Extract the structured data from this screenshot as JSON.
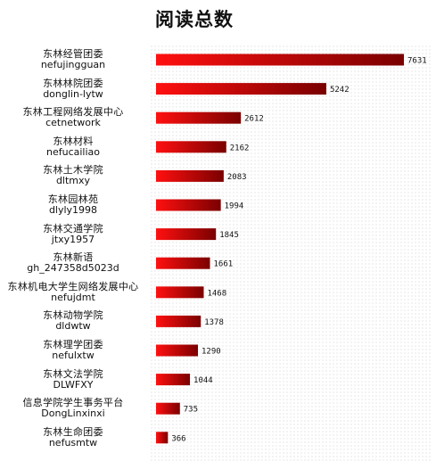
{
  "chart_data": {
    "type": "bar",
    "orientation": "horizontal",
    "title": "阅读总数",
    "categories": [
      {
        "name": "东林经管团委",
        "id": "nefujingguan"
      },
      {
        "name": "东林林院团委",
        "id": "donglin-lytw"
      },
      {
        "name": "东林工程网络发展中心",
        "id": "cetnetwork"
      },
      {
        "name": "东林材料",
        "id": "nefucailiao"
      },
      {
        "name": "东林土木学院",
        "id": "dltmxy"
      },
      {
        "name": "东林园林苑",
        "id": "dlyly1998"
      },
      {
        "name": "东林交通学院",
        "id": "jtxy1957"
      },
      {
        "name": "东林新语",
        "id": "gh_247358d5023d"
      },
      {
        "name": "东林机电大学生网络发展中心",
        "id": "nefujdmt"
      },
      {
        "name": "东林动物学院",
        "id": "dldwtw"
      },
      {
        "name": "东林理学团委",
        "id": "nefulxtw"
      },
      {
        "name": "东林文法学院",
        "id": "DLWFXY"
      },
      {
        "name": "信息学院学生事务平台",
        "id": "DongLinxinxi"
      },
      {
        "name": "东林生命团委",
        "id": "nefusmtw"
      }
    ],
    "values": [
      7631,
      5242,
      2612,
      2162,
      2083,
      1994,
      1845,
      1661,
      1468,
      1378,
      1290,
      1044,
      735,
      366
    ],
    "xlim": [
      0,
      7631
    ],
    "grid": false,
    "legend": "none",
    "colors": {
      "bar_start": "#ff1010",
      "bar_end": "#7a0000",
      "label": "#111111"
    }
  }
}
